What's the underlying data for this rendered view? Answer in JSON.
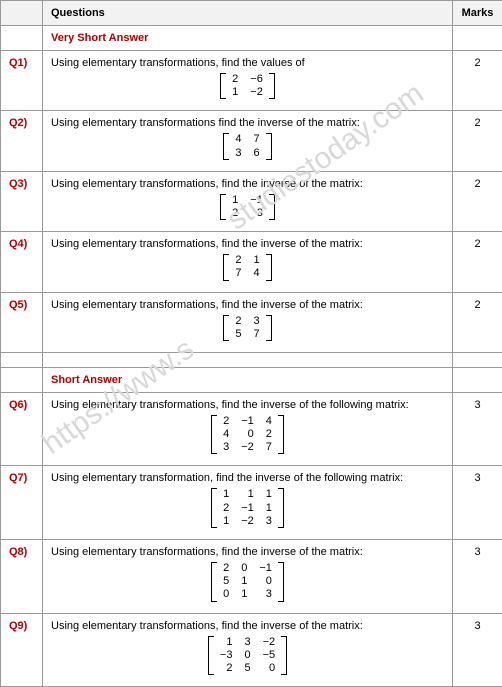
{
  "headers": {
    "questions": "Questions",
    "marks": "Marks"
  },
  "sections": {
    "very_short": "Very Short Answer",
    "short": "Short Answer"
  },
  "watermark1": "studiestoday.com",
  "watermark2": "https://www.s",
  "rows": [
    {
      "id": "Q1)",
      "text": "Using elementary transformations, find the values of",
      "matrix": [
        [
          "2",
          "−6"
        ],
        [
          "1",
          "−2"
        ]
      ],
      "marks": "2"
    },
    {
      "id": "Q2)",
      "text": "Using elementary transformations find the inverse of the matrix:",
      "matrix": [
        [
          "4",
          "7"
        ],
        [
          "3",
          "6"
        ]
      ],
      "marks": "2"
    },
    {
      "id": "Q3)",
      "text": "Using elementary transformations, find the inverse of the matrix:",
      "matrix": [
        [
          "1",
          "−1"
        ],
        [
          "2",
          "3"
        ]
      ],
      "marks": "2"
    },
    {
      "id": "Q4)",
      "text": "Using elementary transformations, find the inverse of the matrix:",
      "matrix": [
        [
          "2",
          "1"
        ],
        [
          "7",
          "4"
        ]
      ],
      "marks": "2"
    },
    {
      "id": "Q5)",
      "text": "Using elementary transformations, find the inverse of the matrix:",
      "matrix": [
        [
          "2",
          "3"
        ],
        [
          "5",
          "7"
        ]
      ],
      "marks": "2"
    },
    {
      "id": "Q6)",
      "text": "Using elementary transformations, find the inverse of the following matrix:",
      "matrix": [
        [
          "2",
          "−1",
          "4"
        ],
        [
          "4",
          "0",
          "2"
        ],
        [
          "3",
          "−2",
          "7"
        ]
      ],
      "marks": "3"
    },
    {
      "id": "Q7)",
      "text": "Using elementary transformation, find the inverse of the following matrix:",
      "matrix": [
        [
          "1",
          "1",
          "1"
        ],
        [
          "2",
          "−1",
          "1"
        ],
        [
          "1",
          "−2",
          "3"
        ]
      ],
      "marks": "3"
    },
    {
      "id": "Q8)",
      "text": "Using elementary transformations, find the inverse of the matrix:",
      "matrix": [
        [
          "2",
          "0",
          "−1"
        ],
        [
          "5",
          "1",
          "0"
        ],
        [
          "0",
          "1",
          "3"
        ]
      ],
      "marks": "3"
    },
    {
      "id": "Q9)",
      "text": "Using elementary transformations, find the inverse of the matrix:",
      "matrix": [
        [
          "1",
          "3",
          "−2"
        ],
        [
          "−3",
          "0",
          "−5"
        ],
        [
          "2",
          "5",
          "0"
        ]
      ],
      "marks": "3"
    }
  ]
}
